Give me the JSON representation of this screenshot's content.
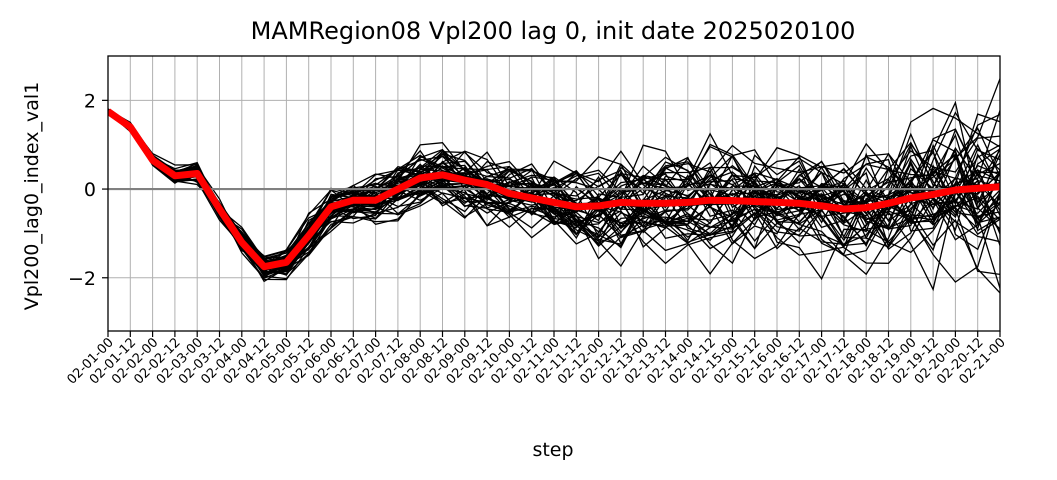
{
  "chart_data": {
    "type": "line",
    "title": "MAMRegion08 Vpl200 lag 0, init date 2025020100",
    "xlabel": "step",
    "ylabel": "Vpl200_lag0_index_val1",
    "ylim": [
      -3.2,
      3.0
    ],
    "yticks": [
      -2,
      0,
      2
    ],
    "ytick_labels": [
      "−2",
      "0",
      "2"
    ],
    "categories": [
      "02-01-00",
      "02-01-12",
      "02-02-00",
      "02-02-12",
      "02-03-00",
      "02-03-12",
      "02-04-00",
      "02-04-12",
      "02-05-00",
      "02-05-12",
      "02-06-00",
      "02-06-12",
      "02-07-00",
      "02-07-12",
      "02-08-00",
      "02-08-12",
      "02-09-00",
      "02-09-12",
      "02-10-00",
      "02-10-12",
      "02-11-00",
      "02-11-12",
      "02-12-00",
      "02-12-12",
      "02-13-00",
      "02-13-12",
      "02-14-00",
      "02-14-12",
      "02-15-00",
      "02-15-12",
      "02-16-00",
      "02-16-12",
      "02-17-00",
      "02-17-12",
      "02-18-00",
      "02-18-12",
      "02-19-00",
      "02-19-12",
      "02-20-00",
      "02-20-12",
      "02-21-00"
    ],
    "grid": true,
    "reference_line": 0,
    "ensemble_members": 51,
    "mean_series": {
      "color": "#ff0000",
      "values": [
        1.75,
        1.4,
        0.65,
        0.3,
        0.35,
        -0.45,
        -1.2,
        -1.75,
        -1.65,
        -1.05,
        -0.4,
        -0.25,
        -0.25,
        0.0,
        0.25,
        0.32,
        0.2,
        0.1,
        -0.1,
        -0.2,
        -0.3,
        -0.4,
        -0.38,
        -0.3,
        -0.32,
        -0.32,
        -0.3,
        -0.25,
        -0.26,
        -0.28,
        -0.3,
        -0.32,
        -0.38,
        -0.45,
        -0.42,
        -0.32,
        -0.2,
        -0.12,
        -0.02,
        0.02,
        0.05
      ]
    },
    "member_color": "#000000",
    "zero_line_color": "#808080"
  }
}
